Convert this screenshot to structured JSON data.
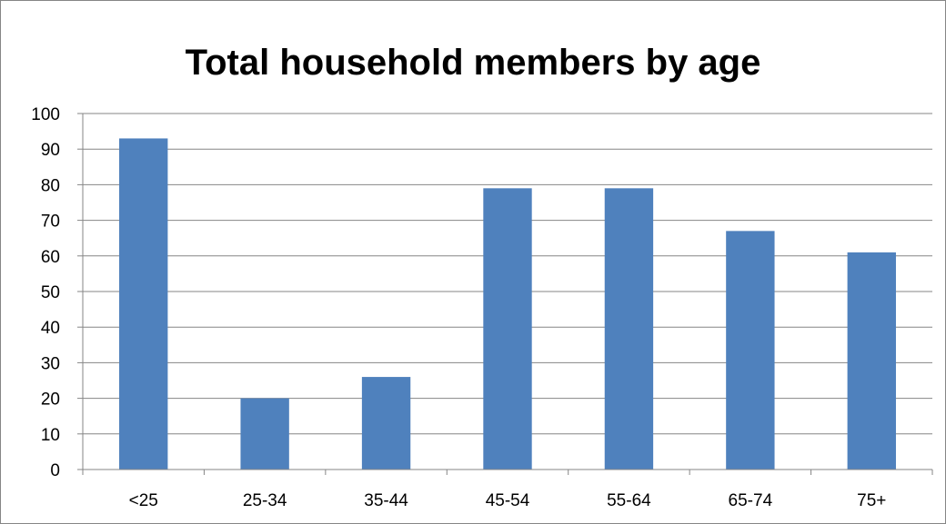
{
  "chart_data": {
    "type": "bar",
    "title": "Total household members by age",
    "xlabel": "",
    "ylabel": "",
    "categories": [
      "<25",
      "25-34",
      "35-44",
      "45-54",
      "55-64",
      "65-74",
      "75+"
    ],
    "values": [
      93,
      20,
      26,
      79,
      79,
      67,
      61
    ],
    "ylim": [
      0,
      100
    ],
    "yticks": [
      0,
      10,
      20,
      30,
      40,
      50,
      60,
      70,
      80,
      90,
      100
    ],
    "grid": true,
    "legend": "none",
    "bar_color": "#4f81bd"
  }
}
